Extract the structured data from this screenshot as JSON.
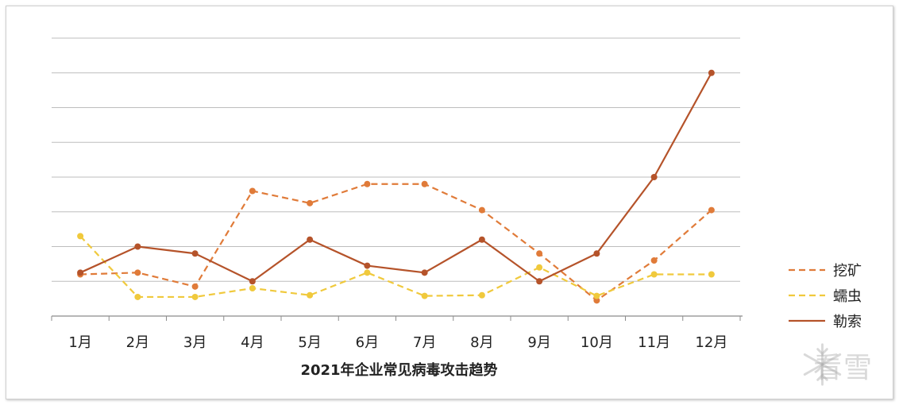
{
  "chart_data": {
    "type": "line",
    "title": "2021年企业常见病毒攻击趋势",
    "categories": [
      "1月",
      "2月",
      "3月",
      "4月",
      "5月",
      "6月",
      "7月",
      "8月",
      "9月",
      "10月",
      "11月",
      "12月"
    ],
    "ylim": [
      0,
      8
    ],
    "y_ticks_shown": false,
    "grid": true,
    "legend_position": "right",
    "series": [
      {
        "name": "挖矿",
        "color": "#e07b39",
        "style": "dashed",
        "values": [
          1.2,
          1.25,
          0.85,
          3.6,
          3.25,
          3.8,
          3.8,
          3.05,
          1.8,
          0.45,
          1.6,
          3.05
        ]
      },
      {
        "name": "蠕虫",
        "color": "#f0c93c",
        "style": "dashed",
        "values": [
          2.3,
          0.55,
          0.55,
          0.8,
          0.6,
          1.25,
          0.58,
          0.6,
          1.4,
          0.58,
          1.2,
          1.2
        ]
      },
      {
        "name": "勒索",
        "color": "#b5532a",
        "style": "solid",
        "values": [
          1.25,
          2.0,
          1.8,
          1.0,
          2.2,
          1.45,
          1.25,
          2.2,
          1.0,
          1.8,
          4.0,
          7.0
        ]
      }
    ]
  },
  "watermark": {
    "text": "看雪",
    "icon": "snowflake-icon"
  }
}
